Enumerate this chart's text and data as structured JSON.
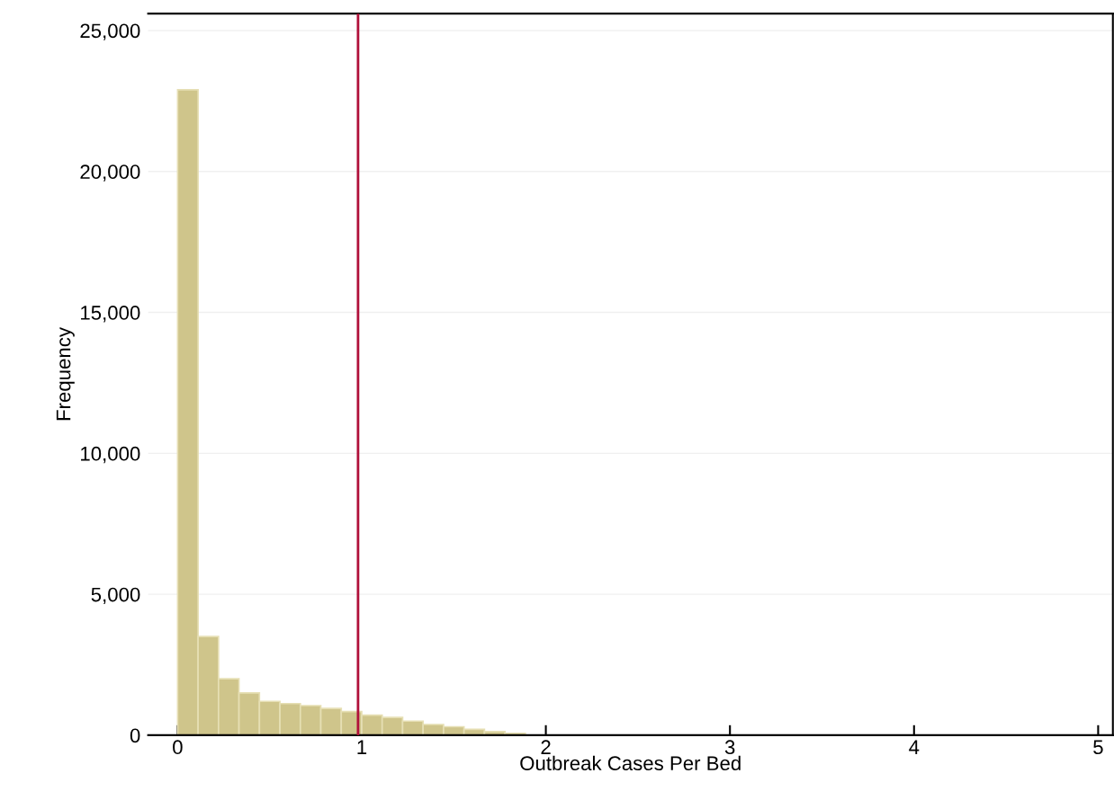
{
  "chart_data": {
    "type": "histogram",
    "xlabel": "Outbreak Cases Per Bed",
    "ylabel": "Frequency",
    "bins": [
      0,
      0.1111,
      0.2222,
      0.3333,
      0.4444,
      0.5556,
      0.6667,
      0.7778,
      0.8889,
      1.0,
      1.1111,
      1.2222,
      1.3333,
      1.4444,
      1.5556,
      1.6667,
      1.7778,
      1.8889,
      2.0,
      2.1111,
      2.2222,
      2.3333,
      2.4444,
      2.5556,
      2.6667,
      2.7778,
      2.8889,
      3.0,
      3.1111,
      3.2222,
      3.3333,
      3.4444,
      3.5556,
      3.6667,
      3.7778,
      3.8889,
      4.0,
      4.1111,
      4.2222,
      4.3333,
      4.4444,
      4.5556,
      4.6667,
      4.7778,
      4.8889,
      5.0
    ],
    "values": [
      22900,
      3500,
      2000,
      1500,
      1200,
      1120,
      1050,
      950,
      840,
      710,
      630,
      500,
      380,
      300,
      210,
      130,
      70,
      null,
      null,
      null,
      null,
      null,
      null,
      null,
      null,
      null,
      null,
      null,
      null,
      null,
      null,
      null,
      null,
      null,
      null,
      null,
      null,
      null,
      null,
      null,
      null,
      null,
      null,
      null,
      null
    ],
    "color": "#cfc58b",
    "xlim": [
      -0.16,
      5.08
    ],
    "xticks": [
      0,
      1,
      2,
      3,
      4,
      5
    ],
    "ylim": [
      0,
      25600
    ],
    "yticks": [
      {
        "value": 0,
        "label": "0"
      },
      {
        "value": 5000,
        "label": "5,000"
      },
      {
        "value": 10000,
        "label": "10,000"
      },
      {
        "value": 15000,
        "label": "15,000"
      },
      {
        "value": 20000,
        "label": "20,000"
      },
      {
        "value": 25000,
        "label": "25,000"
      }
    ],
    "ref_lines": [
      {
        "axis": "x",
        "value": 0.98,
        "color": "#b0103a"
      }
    ],
    "grid": "y"
  }
}
